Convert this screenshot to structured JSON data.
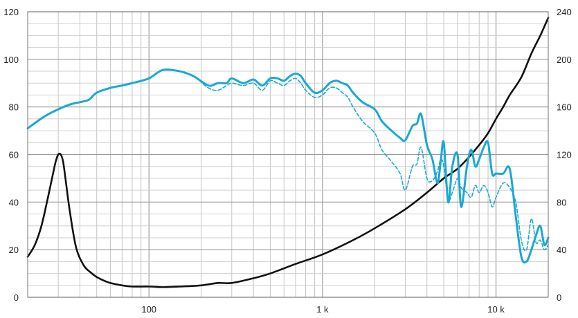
{
  "chart_data": {
    "type": "line",
    "title": "",
    "xlabel": "",
    "ylabel": "",
    "x_scale": "log",
    "xlim": [
      20,
      20000
    ],
    "ylim_left": [
      0,
      120
    ],
    "ylim_right": [
      0,
      240
    ],
    "grid": true,
    "legend": "none",
    "x_tick_labels": [
      {
        "value": 100,
        "label": "100"
      },
      {
        "value": 1000,
        "label": "1 k"
      },
      {
        "value": 10000,
        "label": "10 k"
      }
    ],
    "y_ticks_left": [
      0,
      20,
      40,
      60,
      80,
      100,
      120
    ],
    "y_ticks_right": [
      0,
      40,
      80,
      120,
      160,
      200,
      240
    ],
    "series": [
      {
        "key": "response_solid",
        "axis": "left",
        "color": "#1aa8d4",
        "style": "solid",
        "x": [
          20,
          25,
          30,
          35,
          40,
          45,
          50,
          60,
          70,
          80,
          100,
          120,
          150,
          180,
          220,
          250,
          280,
          300,
          350,
          400,
          450,
          500,
          550,
          600,
          650,
          700,
          750,
          800,
          900,
          1000,
          1100,
          1200,
          1300,
          1400,
          1500,
          1700,
          2000,
          2200,
          2500,
          2800,
          3000,
          3300,
          3500,
          3700,
          4000,
          4300,
          4600,
          4800,
          5000,
          5300,
          5600,
          6000,
          6300,
          6800,
          7200,
          7600,
          8000,
          8500,
          9000,
          9500,
          10000,
          11000,
          12000,
          13000,
          14000,
          15000,
          16000,
          17000,
          18000,
          19000,
          20000
        ],
        "y": [
          71,
          76,
          79,
          81,
          82,
          83,
          86,
          88,
          89,
          90,
          92,
          95.5,
          95,
          93,
          89,
          90,
          90,
          92,
          90,
          91.5,
          89,
          92,
          92,
          91,
          93,
          94,
          93,
          90,
          86,
          87,
          90,
          91,
          90,
          89,
          86,
          82,
          79,
          74,
          70,
          67,
          66,
          72,
          73,
          77,
          64,
          58,
          48,
          57,
          65,
          40,
          55,
          60,
          38,
          55,
          62,
          55,
          58,
          63,
          65,
          52,
          52,
          52,
          54,
          34,
          17,
          15,
          20,
          26,
          30,
          22,
          25
        ]
      },
      {
        "key": "response_dashed",
        "axis": "left",
        "color": "#1aa8d4",
        "style": "dashed",
        "x": [
          20,
          25,
          30,
          35,
          40,
          45,
          50,
          60,
          70,
          80,
          100,
          120,
          150,
          180,
          220,
          250,
          280,
          300,
          350,
          400,
          450,
          500,
          550,
          600,
          650,
          700,
          750,
          800,
          900,
          1000,
          1100,
          1200,
          1300,
          1400,
          1500,
          1700,
          2000,
          2200,
          2500,
          2800,
          3000,
          3300,
          3500,
          3700,
          4000,
          4300,
          4600,
          4800,
          5000,
          5300,
          5600,
          6000,
          6300,
          6800,
          7200,
          7600,
          8000,
          8500,
          9000,
          9500,
          10000,
          11000,
          12000,
          13000,
          14000,
          15000,
          16000,
          17000,
          18000,
          19000,
          20000
        ],
        "y": [
          71,
          76,
          79,
          81,
          82,
          83,
          86,
          88,
          89,
          90,
          92,
          95.5,
          95,
          93,
          88,
          87,
          89,
          90,
          89,
          90,
          87,
          91,
          90,
          89,
          91,
          92,
          90,
          87,
          84,
          85,
          88,
          88,
          86,
          84,
          80,
          74,
          69,
          62,
          57,
          52,
          45,
          55,
          56,
          63,
          50,
          49,
          53,
          58,
          55,
          41,
          44,
          50,
          46,
          44,
          42,
          47,
          44,
          47,
          44,
          38,
          42,
          48,
          46,
          40,
          24,
          20,
          33,
          23,
          24,
          20,
          22
        ]
      },
      {
        "key": "impedance",
        "axis": "right",
        "color": "#111111",
        "style": "solid",
        "x": [
          20,
          22,
          24,
          26,
          28,
          29,
          30,
          31,
          32,
          33,
          35,
          38,
          42,
          46,
          50,
          55,
          60,
          70,
          80,
          100,
          120,
          150,
          200,
          250,
          300,
          400,
          500,
          700,
          1000,
          1500,
          2000,
          3000,
          4000,
          5000,
          6000,
          7000,
          8000,
          9000,
          10000,
          11000,
          12000,
          14000,
          16000,
          18000,
          20000
        ],
        "y": [
          34,
          44,
          60,
          82,
          104,
          114,
          120,
          120,
          114,
          100,
          72,
          42,
          27,
          21,
          17,
          14,
          12,
          10,
          9,
          9,
          8.5,
          9,
          10,
          12,
          12,
          16,
          20,
          28,
          36,
          48,
          58,
          74,
          88,
          100,
          108,
          118,
          128,
          138,
          150,
          160,
          170,
          185,
          205,
          220,
          235
        ]
      }
    ]
  }
}
